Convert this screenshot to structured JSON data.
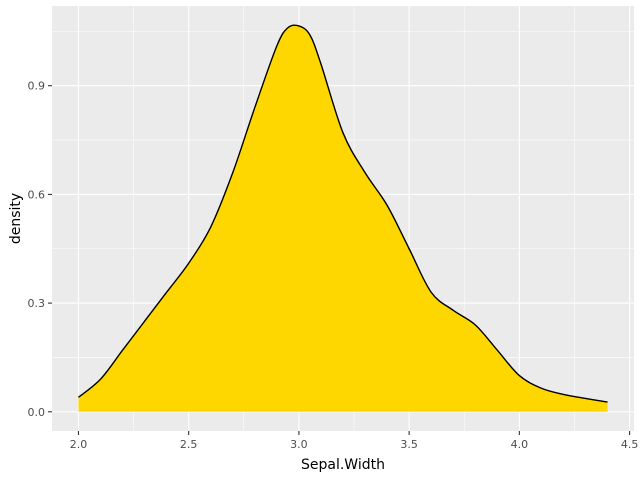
{
  "chart_data": {
    "type": "area",
    "title": "",
    "xlabel": "Sepal.Width",
    "ylabel": "density",
    "xlim": [
      1.88,
      4.52
    ],
    "ylim": [
      -0.053,
      1.12
    ],
    "x_ticks": [
      2.0,
      2.5,
      3.0,
      3.5,
      4.0,
      4.5
    ],
    "x_tick_labels": [
      "2.0",
      "2.5",
      "3.0",
      "3.5",
      "4.0",
      "4.5"
    ],
    "y_ticks": [
      0.0,
      0.3,
      0.6,
      0.9
    ],
    "y_tick_labels": [
      "0.0",
      "0.3",
      "0.6",
      "0.9"
    ],
    "grid": true,
    "panel_background": "#EBEBEB",
    "fill_color": "#FFD700",
    "line_color": "#000000",
    "series": [
      {
        "x": [
          2.0,
          2.1,
          2.2,
          2.3,
          2.4,
          2.5,
          2.6,
          2.7,
          2.8,
          2.9,
          2.95,
          3.0,
          3.05,
          3.1,
          3.2,
          3.3,
          3.4,
          3.5,
          3.6,
          3.7,
          3.8,
          3.9,
          4.0,
          4.1,
          4.2,
          4.3,
          4.4
        ],
        "y": [
          0.04,
          0.09,
          0.17,
          0.25,
          0.33,
          0.41,
          0.51,
          0.66,
          0.84,
          1.01,
          1.06,
          1.065,
          1.04,
          0.96,
          0.77,
          0.66,
          0.57,
          0.45,
          0.33,
          0.28,
          0.24,
          0.17,
          0.1,
          0.065,
          0.048,
          0.037,
          0.027
        ]
      }
    ]
  }
}
